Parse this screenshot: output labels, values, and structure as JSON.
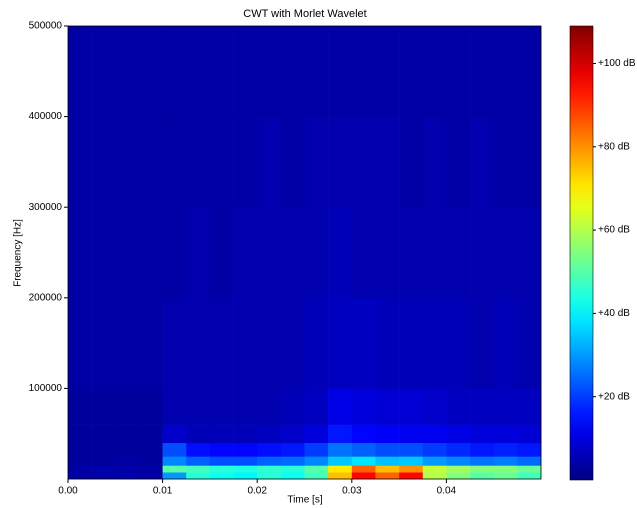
{
  "chart_data": {
    "type": "heatmap",
    "title": "CWT with Morlet Wavelet",
    "x_label": "Time [s]",
    "y_label": "Frequency [Hz]",
    "xlim": [
      0,
      0.05
    ],
    "ylim": [
      0,
      500000
    ],
    "xticks": [
      {
        "value": 0,
        "label": "0.00"
      },
      0.01,
      0.02,
      0.03,
      0.04
    ],
    "yticks": [
      100000,
      200000,
      300000,
      400000,
      500000
    ],
    "x_edges": [
      0,
      0.0025,
      0.005,
      0.0075,
      0.01,
      0.0125,
      0.015,
      0.0175,
      0.02,
      0.0225,
      0.025,
      0.0275,
      0.03,
      0.0325,
      0.035,
      0.0375,
      0.04,
      0.0425,
      0.045,
      0.0475,
      0.05
    ],
    "y_edges": [
      0,
      7500,
      15000,
      25000,
      40000,
      60000,
      100000,
      200000,
      300000,
      400000,
      500000
    ],
    "values": [
      [
        4,
        4,
        5,
        4,
        30,
        45,
        42,
        40,
        45,
        42,
        48,
        75,
        95,
        85,
        95,
        60,
        55,
        50,
        52,
        48
      ],
      [
        4,
        5,
        4,
        4,
        50,
        48,
        45,
        44,
        46,
        45,
        50,
        70,
        85,
        75,
        80,
        62,
        58,
        55,
        55,
        52
      ],
      [
        3,
        3,
        4,
        3,
        28,
        24,
        22,
        22,
        24,
        25,
        28,
        35,
        38,
        34,
        35,
        30,
        28,
        26,
        27,
        25
      ],
      [
        3,
        3,
        3,
        3,
        22,
        15,
        14,
        14,
        15,
        16,
        20,
        26,
        24,
        22,
        22,
        20,
        18,
        16,
        17,
        16
      ],
      [
        3,
        3,
        3,
        3,
        8,
        6,
        6,
        6,
        7,
        8,
        10,
        16,
        14,
        13,
        12,
        12,
        11,
        10,
        10,
        9
      ],
      [
        3,
        3,
        3,
        3,
        5,
        5,
        5,
        5,
        5,
        6,
        7,
        11,
        10,
        9,
        9,
        8,
        7,
        7,
        7,
        7
      ],
      [
        4,
        4,
        4,
        4,
        5,
        5,
        5,
        5,
        5,
        5,
        6,
        7,
        7,
        6,
        6,
        6,
        6,
        5,
        6,
        5
      ],
      [
        4,
        4,
        4,
        4,
        4,
        5,
        4,
        5,
        5,
        5,
        5,
        6,
        5,
        5,
        5,
        5,
        5,
        5,
        5,
        5
      ],
      [
        4,
        4,
        4,
        4,
        4,
        4,
        4,
        4,
        5,
        4,
        5,
        5,
        5,
        5,
        4,
        5,
        4,
        5,
        4,
        4
      ],
      [
        4,
        4,
        4,
        4,
        4,
        4,
        4,
        4,
        4,
        4,
        4,
        4,
        4,
        4,
        4,
        4,
        4,
        4,
        4,
        4
      ]
    ],
    "colormap": "jet",
    "clim": [
      0,
      109
    ],
    "cticks": [
      {
        "value": 20,
        "label": "+20 dB"
      },
      {
        "value": 40,
        "label": "+40 dB"
      },
      {
        "value": 60,
        "label": "+60 dB"
      },
      {
        "value": 80,
        "label": "+80 dB"
      },
      {
        "value": 100,
        "label": "+100 dB"
      }
    ]
  }
}
